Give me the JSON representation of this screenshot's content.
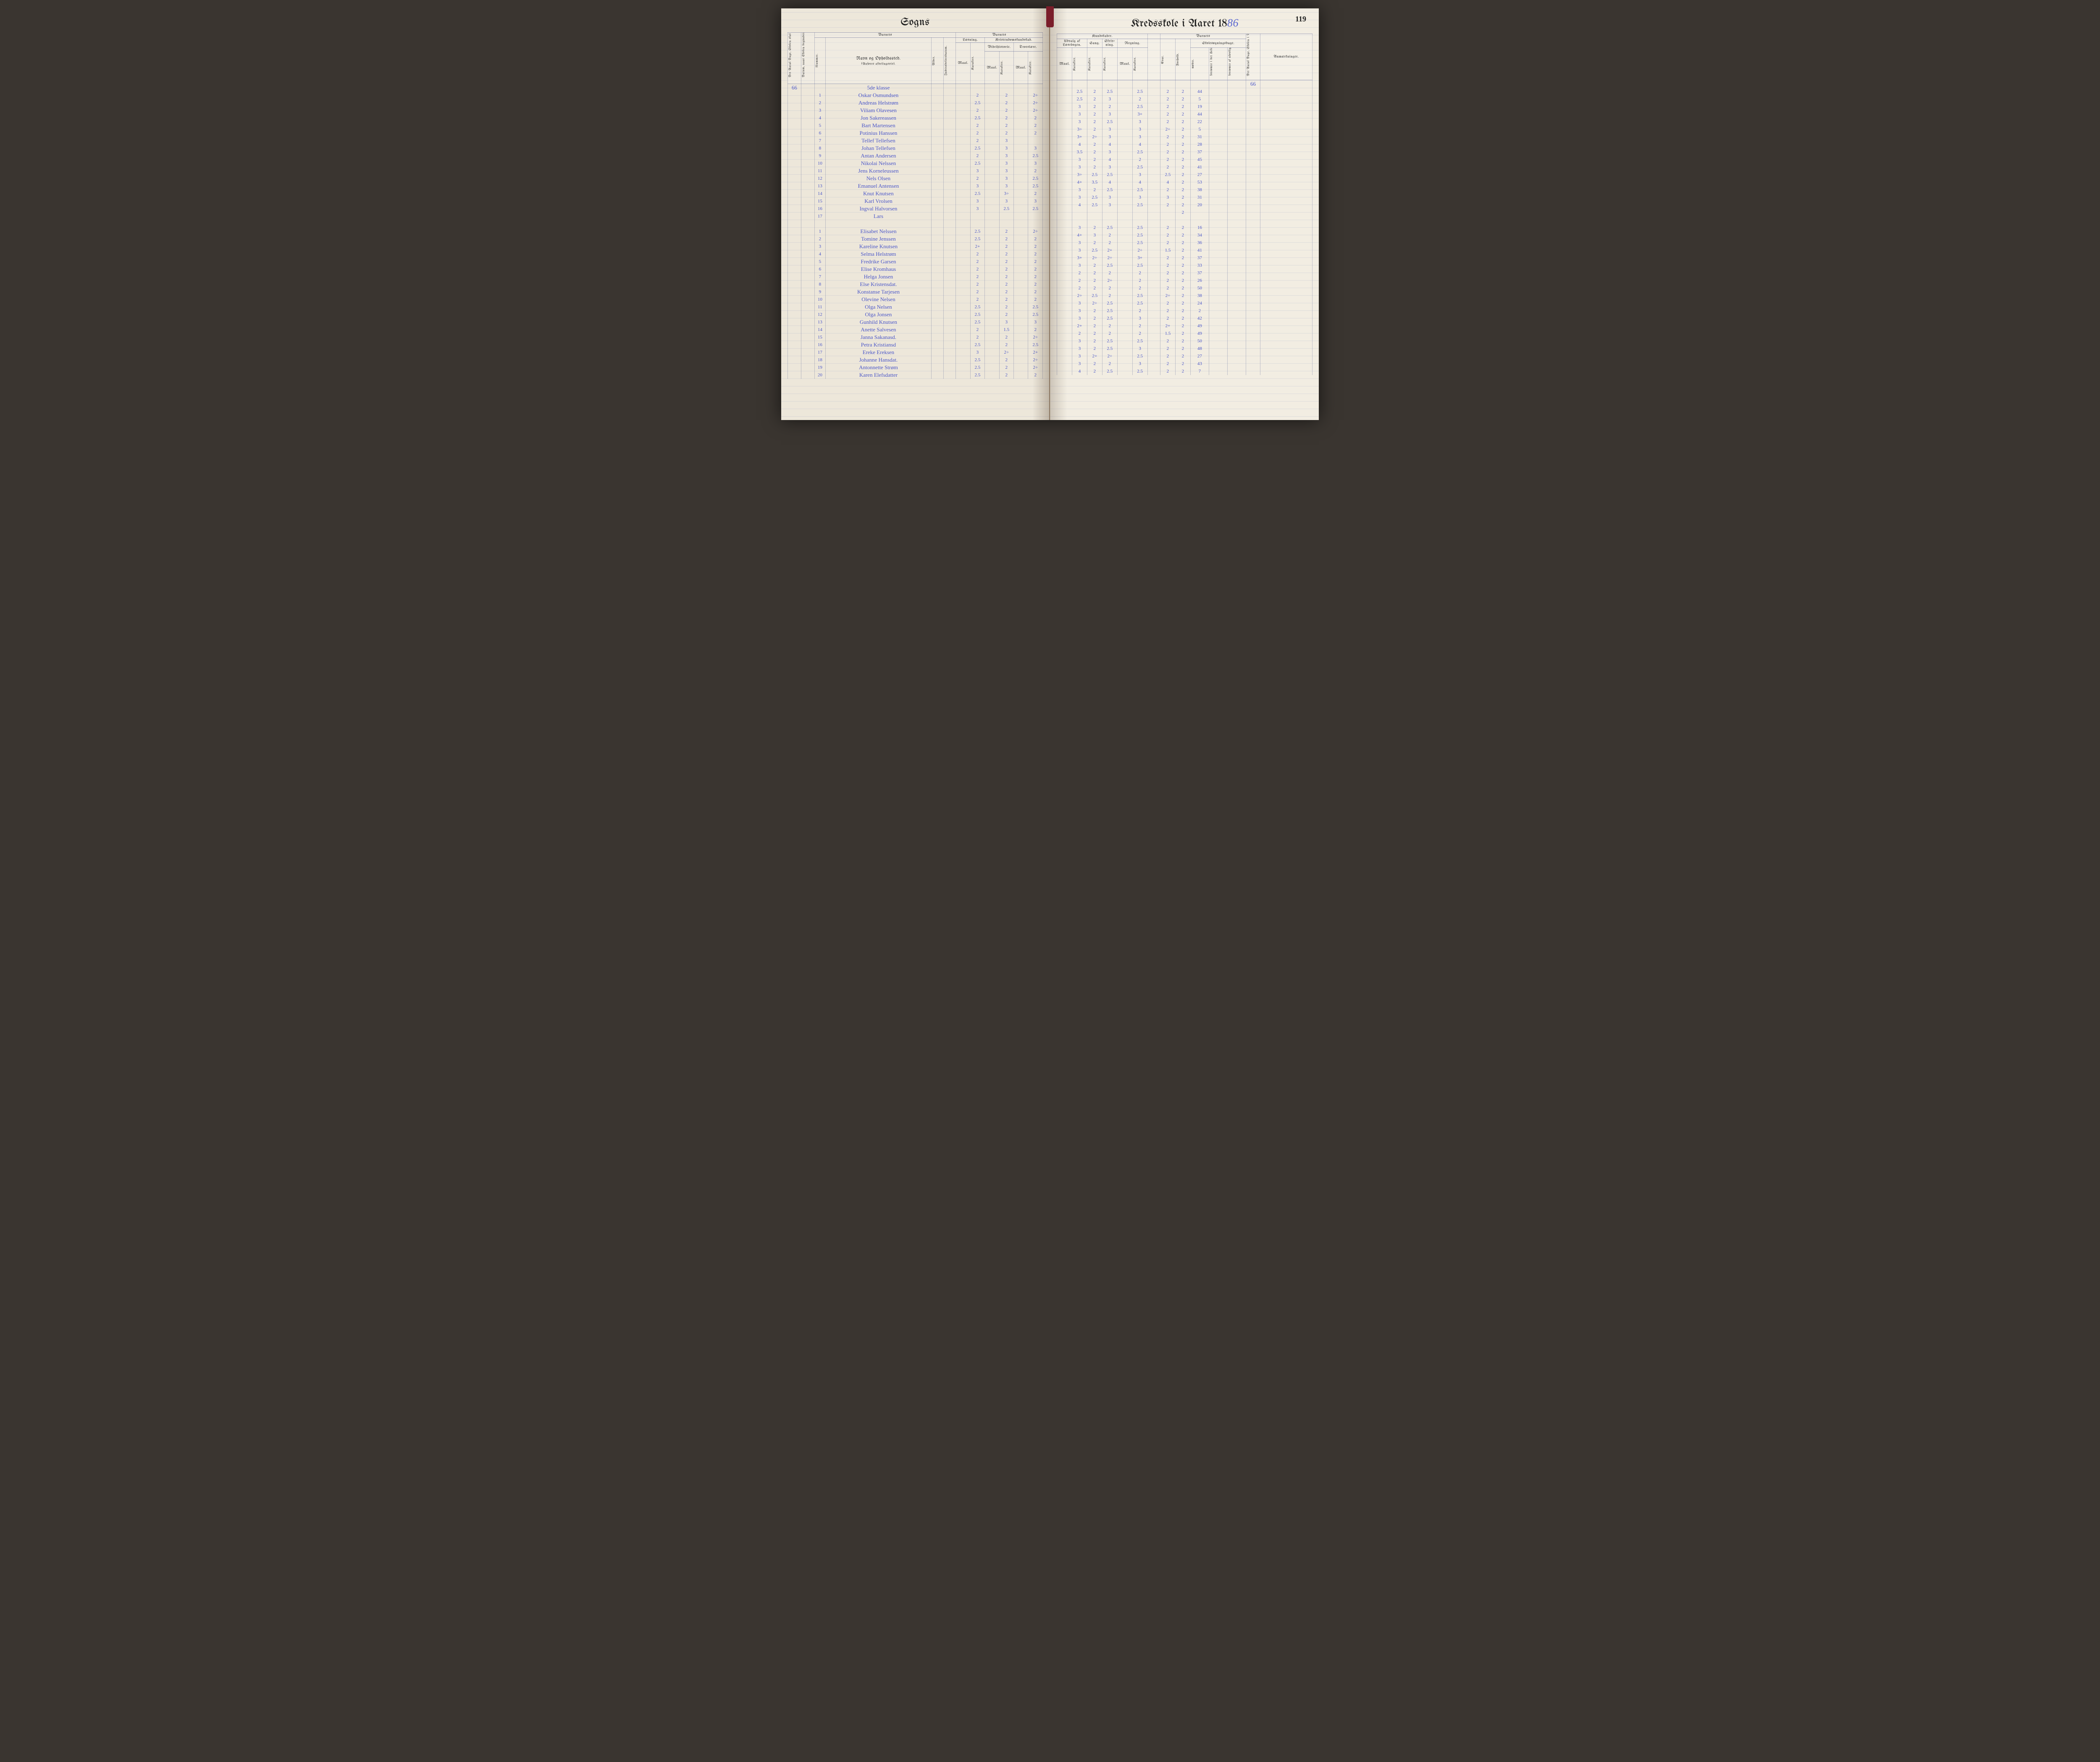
{
  "pageNumber": "119",
  "leftTitle": "Sogns",
  "rightTitlePrefix": "Kredsskole i Aaret 18",
  "rightTitleYear": "86",
  "klasse": "5de klasse",
  "antalDage": "66",
  "headers": {
    "barnets": "Barnets",
    "antalDageHoldes": "Det Antal Dage, Skolen skal holdes i Kredsen.",
    "datumOmgang": "Datum, naar Skolen begynder og slutter hver Omgang.",
    "nummer": "Nummer.",
    "navnOphold": "Navn og Opholdssted.",
    "anfores": "(Anføres afdelingsvis).",
    "alder": "Alder.",
    "indtraed": "Indtrædelsesdatum.",
    "laesning": "Læsning.",
    "kristendom": "Kristendomskundskab.",
    "bibel": "Bibelhistorie.",
    "troes": "Troeslære.",
    "maal": "Maal.",
    "karakter": "Karakter.",
    "kundskaber": "Kundskaber.",
    "udvalg": "Udvalg af Læsebogen.",
    "sang": "Sang.",
    "skrivning": "Skriv-ning.",
    "regning": "Regning.",
    "evne": "Evne.",
    "forhold": "Forhold.",
    "skolesogning": "Skolesøgningsdage.",
    "modte": "mødte.",
    "forsomtHefte": "forsømte i det Hele.",
    "forsomtUlov": "forsømte af ulovlig Grund.",
    "antalVirkelig": "Det Antal Dage, Skolen i Virkeligheden er holdt.",
    "anmaerk": "Anmærkninger."
  },
  "rows": [
    {
      "n": "1",
      "name": "Oskar Osmundsen",
      "l_maal": "",
      "l_kar": "2",
      "b_maal": "",
      "b_kar": "2",
      "t_maal": "",
      "t_kar": "2÷",
      "u_maal": "",
      "u_kar": "2.5",
      "sang": "2",
      "skriv": "2.5",
      "r_maal": "",
      "r_kar": "2.5",
      "evne": "2",
      "forh": "2",
      "modte": "44"
    },
    {
      "n": "2",
      "name": "Andreas Helstrøm",
      "l_maal": "",
      "l_kar": "2.5",
      "b_maal": "",
      "b_kar": "2",
      "t_maal": "",
      "t_kar": "2÷",
      "u_maal": "",
      "u_kar": "2.5",
      "sang": "2",
      "skriv": "3",
      "r_maal": "",
      "r_kar": "2",
      "evne": "2",
      "forh": "2",
      "modte": "5"
    },
    {
      "n": "3",
      "name": "Viliam Olavesen",
      "l_maal": "",
      "l_kar": "2",
      "b_maal": "",
      "b_kar": "2",
      "t_maal": "",
      "t_kar": "2÷",
      "u_maal": "",
      "u_kar": "3",
      "sang": "2",
      "skriv": "2",
      "r_maal": "",
      "r_kar": "2.5",
      "evne": "2",
      "forh": "2",
      "modte": "19"
    },
    {
      "n": "4",
      "name": "Jon Sakereassen",
      "l_maal": "",
      "l_kar": "2.5",
      "b_maal": "",
      "b_kar": "2",
      "t_maal": "",
      "t_kar": "2",
      "u_maal": "",
      "u_kar": "3",
      "sang": "2",
      "skriv": "3",
      "r_maal": "",
      "r_kar": "3+",
      "evne": "2",
      "forh": "2",
      "modte": "44"
    },
    {
      "n": "5",
      "name": "Bart Martensen",
      "l_maal": "",
      "l_kar": "2",
      "b_maal": "",
      "b_kar": "2",
      "t_maal": "",
      "t_kar": "2",
      "u_maal": "",
      "u_kar": "3",
      "sang": "2",
      "skriv": "2.5",
      "r_maal": "",
      "r_kar": "3",
      "evne": "2",
      "forh": "2",
      "modte": "22"
    },
    {
      "n": "6",
      "name": "Potinius Hanssen",
      "l_maal": "",
      "l_kar": "2",
      "b_maal": "",
      "b_kar": "2",
      "t_maal": "",
      "t_kar": "2",
      "u_maal": "",
      "u_kar": "3÷",
      "sang": "2",
      "skriv": "3",
      "r_maal": "",
      "r_kar": "3",
      "evne": "2÷",
      "forh": "2",
      "modte": "5"
    },
    {
      "n": "7",
      "name": "Tellef Tellefsen",
      "l_maal": "",
      "l_kar": "2",
      "b_maal": "",
      "b_kar": "3",
      "t_maal": "",
      "t_kar": "",
      "u_maal": "",
      "u_kar": "3+",
      "sang": "2÷",
      "skriv": "3",
      "r_maal": "",
      "r_kar": "3",
      "evne": "2",
      "forh": "2",
      "modte": "31"
    },
    {
      "n": "8",
      "name": "Johan Tellefsen",
      "l_maal": "",
      "l_kar": "2.5",
      "b_maal": "",
      "b_kar": "3",
      "t_maal": "",
      "t_kar": "3",
      "u_maal": "",
      "u_kar": "4",
      "sang": "2",
      "skriv": "4",
      "r_maal": "",
      "r_kar": "4",
      "evne": "2",
      "forh": "2",
      "modte": "28"
    },
    {
      "n": "9",
      "name": "Antan Andersen",
      "l_maal": "",
      "l_kar": "2",
      "b_maal": "",
      "b_kar": "3",
      "t_maal": "",
      "t_kar": "2.5",
      "u_maal": "",
      "u_kar": "3.5",
      "sang": "2",
      "skriv": "3",
      "r_maal": "",
      "r_kar": "2.5",
      "evne": "2",
      "forh": "2",
      "modte": "37"
    },
    {
      "n": "10",
      "name": "Nikolai Nelssen",
      "l_maal": "",
      "l_kar": "2.5",
      "b_maal": "",
      "b_kar": "3",
      "t_maal": "",
      "t_kar": "3",
      "u_maal": "",
      "u_kar": "3",
      "sang": "2",
      "skriv": "4",
      "r_maal": "",
      "r_kar": "2",
      "evne": "2",
      "forh": "2",
      "modte": "45"
    },
    {
      "n": "11",
      "name": "Jens Korneleussen",
      "l_maal": "",
      "l_kar": "3",
      "b_maal": "",
      "b_kar": "3",
      "t_maal": "",
      "t_kar": "2",
      "u_maal": "",
      "u_kar": "3",
      "sang": "2",
      "skriv": "3",
      "r_maal": "",
      "r_kar": "2.5",
      "evne": "2",
      "forh": "2",
      "modte": "41"
    },
    {
      "n": "12",
      "name": "Nels Olsen",
      "l_maal": "",
      "l_kar": "2",
      "b_maal": "",
      "b_kar": "3",
      "t_maal": "",
      "t_kar": "2.5",
      "u_maal": "",
      "u_kar": "3÷",
      "sang": "2.5",
      "skriv": "2.5",
      "r_maal": "",
      "r_kar": "3",
      "evne": "2.5",
      "forh": "2",
      "modte": "27"
    },
    {
      "n": "13",
      "name": "Emanuel Antensen",
      "l_maal": "",
      "l_kar": "3",
      "b_maal": "",
      "b_kar": "3",
      "t_maal": "",
      "t_kar": "2.5",
      "u_maal": "",
      "u_kar": "4+",
      "sang": "3.5",
      "skriv": "4",
      "r_maal": "",
      "r_kar": "4",
      "evne": "4",
      "forh": "2",
      "modte": "53"
    },
    {
      "n": "14",
      "name": "Knut Knutsen",
      "l_maal": "",
      "l_kar": "2.5",
      "b_maal": "",
      "b_kar": "3÷",
      "t_maal": "",
      "t_kar": "2",
      "u_maal": "",
      "u_kar": "3",
      "sang": "2",
      "skriv": "2.5",
      "r_maal": "",
      "r_kar": "2.5",
      "evne": "2",
      "forh": "2",
      "modte": "38"
    },
    {
      "n": "15",
      "name": "Karl Vrolsen",
      "l_maal": "",
      "l_kar": "3",
      "b_maal": "",
      "b_kar": "3",
      "t_maal": "",
      "t_kar": "3",
      "u_maal": "",
      "u_kar": "3",
      "sang": "2.5",
      "skriv": "3",
      "r_maal": "",
      "r_kar": "3",
      "evne": "3",
      "forh": "2",
      "modte": "31"
    },
    {
      "n": "16",
      "name": "Ingval Halvorsen",
      "l_maal": "",
      "l_kar": "3",
      "b_maal": "",
      "b_kar": "2.5",
      "t_maal": "",
      "t_kar": "2.5",
      "u_maal": "",
      "u_kar": "4",
      "sang": "2.5",
      "skriv": "3",
      "r_maal": "",
      "r_kar": "2.5",
      "evne": "2",
      "forh": "2",
      "modte": "20"
    },
    {
      "n": "17",
      "name": "Lars",
      "l_maal": "",
      "l_kar": "",
      "b_maal": "",
      "b_kar": "",
      "t_maal": "",
      "t_kar": "",
      "u_maal": "",
      "u_kar": "",
      "sang": "",
      "skriv": "",
      "r_maal": "",
      "r_kar": "",
      "evne": "",
      "forh": "2",
      "modte": ""
    },
    {
      "n": "",
      "name": "",
      "l_maal": "",
      "l_kar": "",
      "b_maal": "",
      "b_kar": "",
      "t_maal": "",
      "t_kar": "",
      "u_maal": "",
      "u_kar": "",
      "sang": "",
      "skriv": "",
      "r_maal": "",
      "r_kar": "",
      "evne": "",
      "forh": "",
      "modte": ""
    },
    {
      "n": "1",
      "name": "Elisabet Nelssen",
      "l_maal": "",
      "l_kar": "2.5",
      "b_maal": "",
      "b_kar": "2",
      "t_maal": "",
      "t_kar": "2÷",
      "u_maal": "",
      "u_kar": "3",
      "sang": "2",
      "skriv": "2.5",
      "r_maal": "",
      "r_kar": "2.5",
      "evne": "2",
      "forh": "2",
      "modte": "16"
    },
    {
      "n": "2",
      "name": "Tomine Jenssen",
      "l_maal": "",
      "l_kar": "2.5",
      "b_maal": "",
      "b_kar": "2",
      "t_maal": "",
      "t_kar": "2",
      "u_maal": "",
      "u_kar": "4+",
      "sang": "3",
      "skriv": "2",
      "r_maal": "",
      "r_kar": "2.5",
      "evne": "2",
      "forh": "2",
      "modte": "34"
    },
    {
      "n": "3",
      "name": "Kareline Knutsen",
      "l_maal": "",
      "l_kar": "2+",
      "b_maal": "",
      "b_kar": "2",
      "t_maal": "",
      "t_kar": "2",
      "u_maal": "",
      "u_kar": "3",
      "sang": "2",
      "skriv": "2",
      "r_maal": "",
      "r_kar": "2.5",
      "evne": "2",
      "forh": "2",
      "modte": "36"
    },
    {
      "n": "4",
      "name": "Selma Helstrøm",
      "l_maal": "",
      "l_kar": "2",
      "b_maal": "",
      "b_kar": "2",
      "t_maal": "",
      "t_kar": "2",
      "u_maal": "",
      "u_kar": "3",
      "sang": "2.5",
      "skriv": "2+",
      "r_maal": "",
      "r_kar": "2÷",
      "evne": "1.5",
      "forh": "2",
      "modte": "41"
    },
    {
      "n": "5",
      "name": "Fredrike Garsen",
      "l_maal": "",
      "l_kar": "2",
      "b_maal": "",
      "b_kar": "2",
      "t_maal": "",
      "t_kar": "2",
      "u_maal": "",
      "u_kar": "3+",
      "sang": "2÷",
      "skriv": "2÷",
      "r_maal": "",
      "r_kar": "3+",
      "evne": "2",
      "forh": "2",
      "modte": "37"
    },
    {
      "n": "6",
      "name": "Elise Kromhaus",
      "l_maal": "",
      "l_kar": "2",
      "b_maal": "",
      "b_kar": "2",
      "t_maal": "",
      "t_kar": "2",
      "u_maal": "",
      "u_kar": "3",
      "sang": "2",
      "skriv": "2.5",
      "r_maal": "",
      "r_kar": "2.5",
      "evne": "2",
      "forh": "2",
      "modte": "33"
    },
    {
      "n": "7",
      "name": "Helga Jonsen",
      "l_maal": "",
      "l_kar": "2",
      "b_maal": "",
      "b_kar": "2",
      "t_maal": "",
      "t_kar": "2",
      "u_maal": "",
      "u_kar": "2",
      "sang": "2",
      "skriv": "2",
      "r_maal": "",
      "r_kar": "2",
      "evne": "2",
      "forh": "2",
      "modte": "37"
    },
    {
      "n": "8",
      "name": "Else Kristensdat.",
      "l_maal": "",
      "l_kar": "2",
      "b_maal": "",
      "b_kar": "2",
      "t_maal": "",
      "t_kar": "2",
      "u_maal": "",
      "u_kar": "2",
      "sang": "2",
      "skriv": "2÷",
      "r_maal": "",
      "r_kar": "2",
      "evne": "2",
      "forh": "2",
      "modte": "26"
    },
    {
      "n": "9",
      "name": "Konstanse Tarjesen",
      "l_maal": "",
      "l_kar": "2",
      "b_maal": "",
      "b_kar": "2",
      "t_maal": "",
      "t_kar": "2",
      "u_maal": "",
      "u_kar": "2",
      "sang": "2",
      "skriv": "2",
      "r_maal": "",
      "r_kar": "2",
      "evne": "2",
      "forh": "2",
      "modte": "50"
    },
    {
      "n": "10",
      "name": "Olevine Nelsen",
      "l_maal": "",
      "l_kar": "2",
      "b_maal": "",
      "b_kar": "2",
      "t_maal": "",
      "t_kar": "2",
      "u_maal": "",
      "u_kar": "2÷",
      "sang": "2.5",
      "skriv": "2",
      "r_maal": "",
      "r_kar": "2.5",
      "evne": "2÷",
      "forh": "2",
      "modte": "38"
    },
    {
      "n": "11",
      "name": "Olga Nelsen",
      "l_maal": "",
      "l_kar": "2.5",
      "b_maal": "",
      "b_kar": "2",
      "t_maal": "",
      "t_kar": "2.5",
      "u_maal": "",
      "u_kar": "3",
      "sang": "2÷",
      "skriv": "2.5",
      "r_maal": "",
      "r_kar": "2.5",
      "evne": "2",
      "forh": "2",
      "modte": "24"
    },
    {
      "n": "12",
      "name": "Olga Jonsen",
      "l_maal": "",
      "l_kar": "2.5",
      "b_maal": "",
      "b_kar": "2",
      "t_maal": "",
      "t_kar": "2.5",
      "u_maal": "",
      "u_kar": "3",
      "sang": "2",
      "skriv": "2.5",
      "r_maal": "",
      "r_kar": "2",
      "evne": "2",
      "forh": "2",
      "modte": "2"
    },
    {
      "n": "13",
      "name": "Gunhild Knutsen",
      "l_maal": "",
      "l_kar": "2.5",
      "b_maal": "",
      "b_kar": "3",
      "t_maal": "",
      "t_kar": "3",
      "u_maal": "",
      "u_kar": "3",
      "sang": "2",
      "skriv": "2.5",
      "r_maal": "",
      "r_kar": "3",
      "evne": "2",
      "forh": "2",
      "modte": "42"
    },
    {
      "n": "14",
      "name": "Anette Salvesen",
      "l_maal": "",
      "l_kar": "2",
      "b_maal": "",
      "b_kar": "1.5",
      "t_maal": "",
      "t_kar": "2",
      "u_maal": "",
      "u_kar": "2+",
      "sang": "2",
      "skriv": "2",
      "r_maal": "",
      "r_kar": "2",
      "evne": "2+",
      "forh": "2",
      "modte": "49"
    },
    {
      "n": "15",
      "name": "Janna Sakanasd.",
      "l_maal": "",
      "l_kar": "2",
      "b_maal": "",
      "b_kar": "2",
      "t_maal": "",
      "t_kar": "2÷",
      "u_maal": "",
      "u_kar": "2",
      "sang": "2",
      "skriv": "2",
      "r_maal": "",
      "r_kar": "2",
      "evne": "1.5",
      "forh": "2",
      "modte": "49"
    },
    {
      "n": "16",
      "name": "Petra Kristiansd",
      "l_maal": "",
      "l_kar": "2.5",
      "b_maal": "",
      "b_kar": "2",
      "t_maal": "",
      "t_kar": "2.5",
      "u_maal": "",
      "u_kar": "3",
      "sang": "2",
      "skriv": "2.5",
      "r_maal": "",
      "r_kar": "2.5",
      "evne": "2",
      "forh": "2",
      "modte": "50"
    },
    {
      "n": "17",
      "name": "Ereke Ereksen",
      "l_maal": "",
      "l_kar": "3",
      "b_maal": "",
      "b_kar": "2÷",
      "t_maal": "",
      "t_kar": "2+",
      "u_maal": "",
      "u_kar": "3",
      "sang": "2",
      "skriv": "2.5",
      "r_maal": "",
      "r_kar": "3",
      "evne": "2",
      "forh": "2",
      "modte": "48"
    },
    {
      "n": "18",
      "name": "Johanne Hansdat.",
      "l_maal": "",
      "l_kar": "2.5",
      "b_maal": "",
      "b_kar": "2",
      "t_maal": "",
      "t_kar": "2÷",
      "u_maal": "",
      "u_kar": "3",
      "sang": "2+",
      "skriv": "2÷",
      "r_maal": "",
      "r_kar": "2.5",
      "evne": "2",
      "forh": "2",
      "modte": "27"
    },
    {
      "n": "19",
      "name": "Antonnette Strøm",
      "l_maal": "",
      "l_kar": "2.5",
      "b_maal": "",
      "b_kar": "2",
      "t_maal": "",
      "t_kar": "2÷",
      "u_maal": "",
      "u_kar": "3",
      "sang": "2",
      "skriv": "2",
      "r_maal": "",
      "r_kar": "3",
      "evne": "2",
      "forh": "2",
      "modte": "43"
    },
    {
      "n": "20",
      "name": "Karen Elefsdatter",
      "l_maal": "",
      "l_kar": "2.5",
      "b_maal": "",
      "b_kar": "2",
      "t_maal": "",
      "t_kar": "2",
      "u_maal": "",
      "u_kar": "4",
      "sang": "2",
      "skriv": "2.5",
      "r_maal": "",
      "r_kar": "2.5",
      "evne": "2",
      "forh": "2",
      "modte": "7"
    }
  ]
}
